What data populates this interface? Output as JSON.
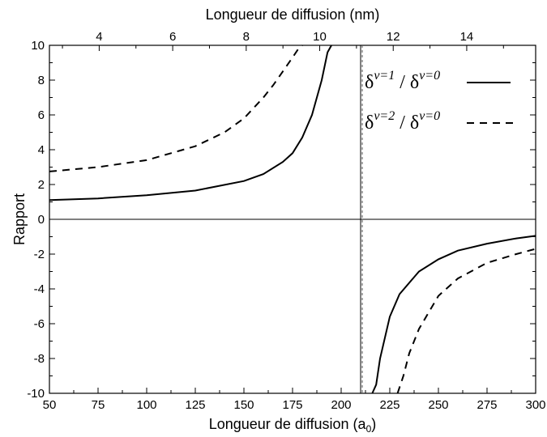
{
  "chart_data": {
    "type": "line",
    "title": "",
    "xlabel": "Longueur de diffusion (a",
    "xlabel_subscript": "0",
    "xlabel_close": ")",
    "x2label": "Longueur de diffusion (nm)",
    "ylabel": "Rapport",
    "xlim": [
      50,
      300
    ],
    "ylim": [
      -10,
      10
    ],
    "x_ticks": [
      "50",
      "75",
      "100",
      "125",
      "150",
      "175",
      "200",
      "225",
      "250",
      "275",
      "300"
    ],
    "y_ticks": [
      "-10",
      "-8",
      "-6",
      "-4",
      "-2",
      "0",
      "2",
      "4",
      "6",
      "8",
      "10"
    ],
    "x2_ticks": [
      "4",
      "6",
      "8",
      "10",
      "12",
      "14"
    ],
    "x2_scale_a0_per_nm": 18.897,
    "pole_x": 210,
    "grid": false,
    "legend_position": "top-right",
    "series": [
      {
        "name_base": "δ",
        "name_sup1": "v=1",
        "name_sep": " / δ",
        "name_sup2": "v=0",
        "style": "solid",
        "color": "#000000",
        "x": [
          50,
          75,
          100,
          125,
          150,
          160,
          170,
          175,
          180,
          185,
          190,
          193,
          195,
          216,
          218,
          220,
          225,
          230,
          240,
          250,
          260,
          275,
          290,
          300
        ],
        "y": [
          1.1,
          1.2,
          1.38,
          1.65,
          2.2,
          2.6,
          3.3,
          3.8,
          4.7,
          6.0,
          8.0,
          9.6,
          10.0,
          -10.0,
          -9.5,
          -8.0,
          -5.6,
          -4.3,
          -3.0,
          -2.3,
          -1.8,
          -1.4,
          -1.1,
          -0.95
        ]
      },
      {
        "name_base": "δ",
        "name_sup1": "v=2",
        "name_sep": " / δ",
        "name_sup2": "v=0",
        "style": "dashed",
        "color": "#000000",
        "x": [
          50,
          75,
          100,
          125,
          140,
          150,
          160,
          165,
          170,
          175,
          178,
          180,
          229,
          232,
          235,
          240,
          250,
          260,
          275,
          290,
          300
        ],
        "y": [
          2.75,
          3.0,
          3.4,
          4.2,
          5.0,
          5.8,
          7.0,
          7.7,
          8.5,
          9.3,
          9.8,
          10.0,
          -10.0,
          -9.0,
          -7.7,
          -6.3,
          -4.4,
          -3.4,
          -2.5,
          -2.0,
          -1.7
        ]
      }
    ]
  }
}
